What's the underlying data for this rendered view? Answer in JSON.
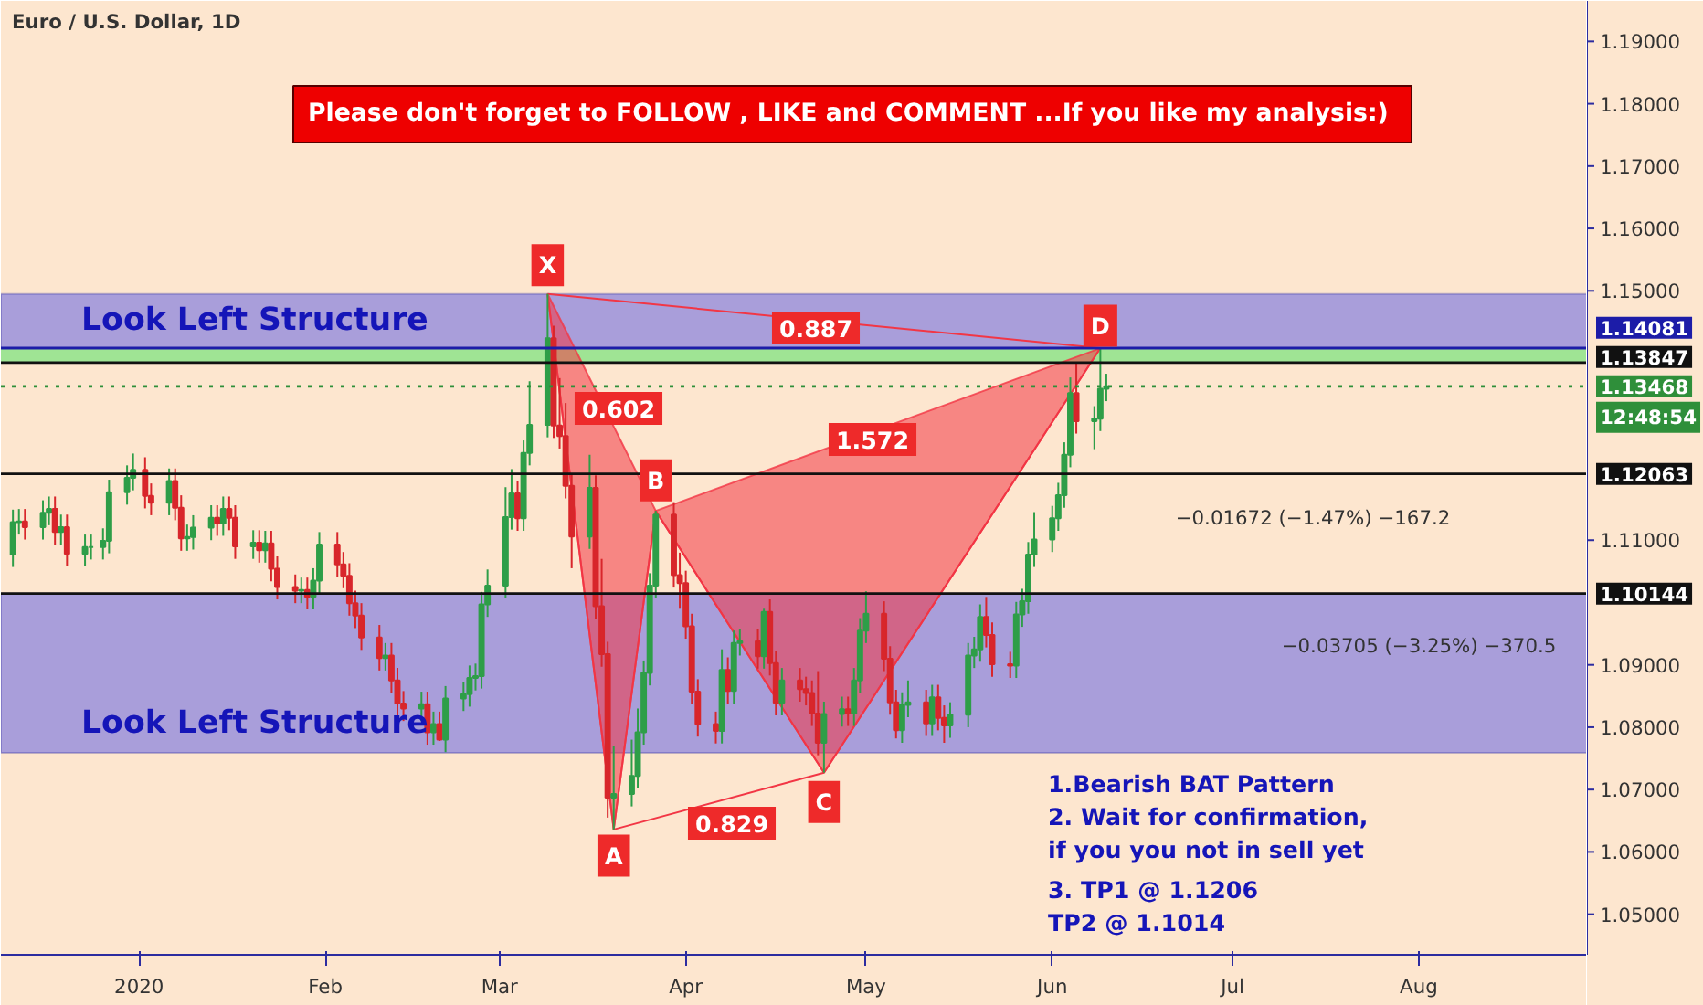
{
  "chart_data": {
    "type": "candlestick",
    "title": "Euro / U.S. Dollar, 1D",
    "x": [
      "2019-12-11",
      "2019-12-12",
      "2019-12-13",
      "2019-12-16",
      "2019-12-17",
      "2019-12-18",
      "2019-12-19",
      "2019-12-20",
      "2019-12-23",
      "2019-12-24",
      "2019-12-26",
      "2019-12-27",
      "2019-12-30",
      "2019-12-31",
      "2020-01-02",
      "2020-01-03",
      "2020-01-06",
      "2020-01-07",
      "2020-01-08",
      "2020-01-09",
      "2020-01-10",
      "2020-01-13",
      "2020-01-14",
      "2020-01-15",
      "2020-01-16",
      "2020-01-17",
      "2020-01-20",
      "2020-01-21",
      "2020-01-22",
      "2020-01-23",
      "2020-01-24",
      "2020-01-27",
      "2020-01-28",
      "2020-01-29",
      "2020-01-30",
      "2020-01-31",
      "2020-02-03",
      "2020-02-04",
      "2020-02-05",
      "2020-02-06",
      "2020-02-07",
      "2020-02-10",
      "2020-02-11",
      "2020-02-12",
      "2020-02-13",
      "2020-02-14",
      "2020-02-17",
      "2020-02-18",
      "2020-02-19",
      "2020-02-20",
      "2020-02-21",
      "2020-02-24",
      "2020-02-25",
      "2020-02-26",
      "2020-02-27",
      "2020-02-28",
      "2020-03-02",
      "2020-03-03",
      "2020-03-04",
      "2020-03-05",
      "2020-03-06",
      "2020-03-09",
      "2020-03-10",
      "2020-03-11",
      "2020-03-12",
      "2020-03-13",
      "2020-03-16",
      "2020-03-17",
      "2020-03-18",
      "2020-03-19",
      "2020-03-20",
      "2020-03-23",
      "2020-03-24",
      "2020-03-25",
      "2020-03-26",
      "2020-03-27",
      "2020-03-30",
      "2020-03-31",
      "2020-04-01",
      "2020-04-02",
      "2020-04-03",
      "2020-04-06",
      "2020-04-07",
      "2020-04-08",
      "2020-04-09",
      "2020-04-10",
      "2020-04-13",
      "2020-04-14",
      "2020-04-15",
      "2020-04-16",
      "2020-04-17",
      "2020-04-20",
      "2020-04-21",
      "2020-04-22",
      "2020-04-23",
      "2020-04-24",
      "2020-04-27",
      "2020-04-28",
      "2020-04-29",
      "2020-04-30",
      "2020-05-01",
      "2020-05-04",
      "2020-05-05",
      "2020-05-06",
      "2020-05-07",
      "2020-05-08",
      "2020-05-11",
      "2020-05-12",
      "2020-05-13",
      "2020-05-14",
      "2020-05-15",
      "2020-05-18",
      "2020-05-19",
      "2020-05-20",
      "2020-05-21",
      "2020-05-22",
      "2020-05-25",
      "2020-05-26",
      "2020-05-27",
      "2020-05-28",
      "2020-05-29",
      "2020-06-01",
      "2020-06-02",
      "2020-06-03",
      "2020-06-04",
      "2020-06-05",
      "2020-06-08",
      "2020-06-09",
      "2020-06-10"
    ],
    "ohlc": [
      [
        1.1077,
        1.1149,
        1.1057,
        1.1129
      ],
      [
        1.1129,
        1.115,
        1.1109,
        1.113
      ],
      [
        1.113,
        1.115,
        1.1101,
        1.1121
      ],
      [
        1.1121,
        1.1164,
        1.1101,
        1.1144
      ],
      [
        1.1144,
        1.117,
        1.1124,
        1.115
      ],
      [
        1.115,
        1.117,
        1.1093,
        1.1113
      ],
      [
        1.1113,
        1.1141,
        1.1093,
        1.1121
      ],
      [
        1.1121,
        1.1141,
        1.1058,
        1.1078
      ],
      [
        1.1078,
        1.1109,
        1.1058,
        1.1089
      ],
      [
        1.1089,
        1.1109,
        1.1069,
        1.1089
      ],
      [
        1.1089,
        1.1119,
        1.1069,
        1.1099
      ],
      [
        1.1099,
        1.1197,
        1.1079,
        1.1177
      ],
      [
        1.1177,
        1.122,
        1.1157,
        1.12
      ],
      [
        1.12,
        1.1239,
        1.118,
        1.1213
      ],
      [
        1.1213,
        1.1233,
        1.1151,
        1.1171
      ],
      [
        1.1171,
        1.1191,
        1.114,
        1.116
      ],
      [
        1.116,
        1.1215,
        1.114,
        1.1195
      ],
      [
        1.1195,
        1.1215,
        1.1132,
        1.1152
      ],
      [
        1.1152,
        1.1172,
        1.1083,
        1.1103
      ],
      [
        1.1103,
        1.1125,
        1.1083,
        1.1105
      ],
      [
        1.1105,
        1.114,
        1.1085,
        1.112
      ],
      [
        1.112,
        1.1156,
        1.11,
        1.1136
      ],
      [
        1.1136,
        1.1156,
        1.1107,
        1.1127
      ],
      [
        1.1127,
        1.117,
        1.1107,
        1.115
      ],
      [
        1.115,
        1.117,
        1.1116,
        1.1136
      ],
      [
        1.1136,
        1.1156,
        1.107,
        1.109
      ],
      [
        1.109,
        1.1116,
        1.107,
        1.1096
      ],
      [
        1.1096,
        1.1116,
        1.1064,
        1.1084
      ],
      [
        1.1084,
        1.1115,
        1.1064,
        1.1095
      ],
      [
        1.1095,
        1.1115,
        1.1034,
        1.1054
      ],
      [
        1.1054,
        1.1074,
        1.1005,
        1.1025
      ],
      [
        1.1025,
        1.1045,
        1.0999,
        1.1019
      ],
      [
        1.1019,
        1.104,
        1.0999,
        1.102
      ],
      [
        1.102,
        1.104,
        1.0989,
        1.1009
      ],
      [
        1.1009,
        1.1055,
        1.0989,
        1.1035
      ],
      [
        1.1035,
        1.1113,
        1.1015,
        1.1093
      ],
      [
        1.1093,
        1.1113,
        1.1041,
        1.1061
      ],
      [
        1.1061,
        1.1081,
        1.1023,
        1.1043
      ],
      [
        1.1043,
        1.1063,
        1.0979,
        1.0999
      ],
      [
        1.0999,
        1.1019,
        1.0959,
        1.0979
      ],
      [
        1.0979,
        1.0999,
        1.0924,
        1.0944
      ],
      [
        1.0944,
        1.0964,
        1.0891,
        1.0911
      ],
      [
        1.0911,
        1.0935,
        1.0891,
        1.0915
      ],
      [
        1.0915,
        1.0935,
        1.0855,
        1.0875
      ],
      [
        1.0875,
        1.0895,
        1.0818,
        1.0838
      ],
      [
        1.0838,
        1.0858,
        1.081,
        1.083
      ],
      [
        1.083,
        1.0857,
        1.081,
        1.0837
      ],
      [
        1.0837,
        1.0857,
        1.0772,
        1.0792
      ],
      [
        1.0792,
        1.0825,
        1.0772,
        1.0805
      ],
      [
        1.0805,
        1.0825,
        1.0778,
        1.078
      ],
      [
        1.078,
        1.0866,
        1.076,
        1.0846
      ],
      [
        1.0846,
        1.0873,
        1.0826,
        1.0853
      ],
      [
        1.0853,
        1.0899,
        1.0833,
        1.0879
      ],
      [
        1.0879,
        1.0902,
        1.0859,
        1.0882
      ],
      [
        1.0882,
        1.1017,
        1.0862,
        1.0997
      ],
      [
        1.0997,
        1.1053,
        1.0977,
        1.1027
      ],
      [
        1.1027,
        1.1185,
        1.1007,
        1.1137
      ],
      [
        1.1137,
        1.1214,
        1.1117,
        1.1175
      ],
      [
        1.1175,
        1.1195,
        1.1115,
        1.1135
      ],
      [
        1.1135,
        1.126,
        1.1115,
        1.124
      ],
      [
        1.124,
        1.1355,
        1.122,
        1.1285
      ],
      [
        1.1285,
        1.1495,
        1.1265,
        1.1424
      ],
      [
        1.1424,
        1.1444,
        1.1264,
        1.1284
      ],
      [
        1.1284,
        1.136,
        1.1247,
        1.1267
      ],
      [
        1.1267,
        1.132,
        1.1167,
        1.1187
      ],
      [
        1.1187,
        1.1207,
        1.1055,
        1.1106
      ],
      [
        1.1106,
        1.1237,
        1.1086,
        1.1184
      ],
      [
        1.1184,
        1.1204,
        1.0974,
        1.0994
      ],
      [
        1.0994,
        1.107,
        1.0897,
        1.0917
      ],
      [
        1.0917,
        1.0937,
        1.0655,
        1.0687
      ],
      [
        1.0687,
        1.077,
        1.0636,
        1.0693
      ],
      [
        1.0693,
        1.078,
        1.0673,
        1.0722
      ],
      [
        1.0722,
        1.083,
        1.0702,
        1.0792
      ],
      [
        1.0792,
        1.0907,
        1.0772,
        1.0887
      ],
      [
        1.0887,
        1.1047,
        1.0867,
        1.1027
      ],
      [
        1.1027,
        1.1147,
        1.1007,
        1.1141
      ],
      [
        1.1141,
        1.1161,
        1.1024,
        1.1044
      ],
      [
        1.1044,
        1.108,
        1.099,
        1.1031
      ],
      [
        1.1031,
        1.1051,
        1.0942,
        1.0962
      ],
      [
        1.0962,
        1.0982,
        1.0837,
        1.0857
      ],
      [
        1.0857,
        1.0877,
        1.0785,
        1.0805
      ],
      [
        1.0805,
        1.0825,
        1.0774,
        1.0794
      ],
      [
        1.0794,
        1.0925,
        1.0774,
        1.0892
      ],
      [
        1.0892,
        1.0912,
        1.0838,
        1.0858
      ],
      [
        1.0858,
        1.0955,
        1.0838,
        1.0935
      ],
      [
        1.0935,
        1.0958,
        1.0915,
        1.0938
      ],
      [
        1.0938,
        1.0958,
        1.0894,
        1.0914
      ],
      [
        1.0914,
        1.099,
        1.0894,
        1.0985
      ],
      [
        1.0985,
        1.1005,
        1.0883,
        1.0903
      ],
      [
        1.0903,
        1.0923,
        1.0819,
        1.0839
      ],
      [
        1.0839,
        1.0895,
        1.0819,
        1.0875
      ],
      [
        1.0875,
        1.0895,
        1.0841,
        1.0861
      ],
      [
        1.0861,
        1.0881,
        1.0835,
        1.0855
      ],
      [
        1.0855,
        1.0875,
        1.0802,
        1.0822
      ],
      [
        1.0822,
        1.089,
        1.0755,
        1.0775
      ],
      [
        1.0775,
        1.0841,
        1.0727,
        1.0821
      ],
      [
        1.0821,
        1.0849,
        1.0801,
        1.0829
      ],
      [
        1.0829,
        1.0849,
        1.0802,
        1.0822
      ],
      [
        1.0822,
        1.0895,
        1.0802,
        1.0875
      ],
      [
        1.0875,
        1.0975,
        1.0855,
        1.0955
      ],
      [
        1.0955,
        1.1018,
        1.0935,
        1.0982
      ],
      [
        1.0982,
        1.1002,
        1.089,
        1.091
      ],
      [
        1.091,
        1.093,
        1.082,
        1.084
      ],
      [
        1.084,
        1.086,
        1.0782,
        1.0795
      ],
      [
        1.0795,
        1.0856,
        1.0775,
        1.0836
      ],
      [
        1.0836,
        1.0875,
        1.0816,
        1.084
      ],
      [
        1.084,
        1.086,
        1.0786,
        1.0806
      ],
      [
        1.0806,
        1.0868,
        1.0786,
        1.0848
      ],
      [
        1.0848,
        1.0868,
        1.0795,
        1.0815
      ],
      [
        1.0815,
        1.0835,
        1.0775,
        1.0803
      ],
      [
        1.0803,
        1.084,
        1.0783,
        1.082
      ],
      [
        1.082,
        1.0935,
        1.08,
        1.0915
      ],
      [
        1.0915,
        1.0945,
        1.0895,
        1.0925
      ],
      [
        1.0925,
        1.0997,
        1.0905,
        1.0977
      ],
      [
        1.0977,
        1.1009,
        1.0928,
        1.0948
      ],
      [
        1.0948,
        1.0968,
        1.0881,
        1.0901
      ],
      [
        1.0901,
        1.0921,
        1.0879,
        1.0899
      ],
      [
        1.0899,
        1.1001,
        1.0879,
        1.0981
      ],
      [
        1.0981,
        1.1022,
        1.0961,
        1.1002
      ],
      [
        1.1002,
        1.1097,
        1.0982,
        1.1077
      ],
      [
        1.1077,
        1.1145,
        1.1057,
        1.1101
      ],
      [
        1.1101,
        1.1155,
        1.1081,
        1.1135
      ],
      [
        1.1135,
        1.1192,
        1.1115,
        1.1172
      ],
      [
        1.1172,
        1.1257,
        1.1152,
        1.1237
      ],
      [
        1.1237,
        1.1361,
        1.1217,
        1.1336
      ],
      [
        1.1336,
        1.1384,
        1.1271,
        1.1291
      ],
      [
        1.1291,
        1.1315,
        1.1246,
        1.1295
      ],
      [
        1.1295,
        1.1408,
        1.1275,
        1.1343
      ],
      [
        1.1343,
        1.1367,
        1.1323,
        1.1347
      ]
    ],
    "series": [
      {
        "type": "line",
        "color": "#f23645",
        "x": [
          "2020-03-09",
          "2020-03-20",
          "2020-03-27",
          "2020-04-24",
          "2020-06-09"
        ],
        "values": [
          1.1495,
          1.0636,
          1.1147,
          1.0727,
          1.1408
        ]
      },
      {
        "type": "area",
        "color": "#f23645",
        "x": [
          "2020-03-09",
          "2020-03-20",
          "2020-03-27"
        ],
        "values": [
          1.1495,
          1.0636,
          1.1147
        ]
      },
      {
        "type": "area",
        "color": "#f23645",
        "x": [
          "2020-03-27",
          "2020-04-24",
          "2020-06-09"
        ],
        "values": [
          1.1147,
          1.0727,
          1.1408
        ]
      }
    ],
    "xlim": [
      "2019-12-09",
      "2020-08-29"
    ],
    "xticks": [
      {
        "value": "2020-01-01",
        "label": "2020"
      },
      {
        "value": "2020-02-01",
        "label": "Feb"
      },
      {
        "value": "2020-03-01",
        "label": "Mar"
      },
      {
        "value": "2020-04-01",
        "label": "Apr"
      },
      {
        "value": "2020-05-01",
        "label": "May"
      },
      {
        "value": "2020-06-01",
        "label": "Jun"
      },
      {
        "value": "2020-07-01",
        "label": "Jul"
      },
      {
        "value": "2020-08-01",
        "label": "Aug"
      }
    ],
    "ylim": [
      1.0435,
      1.1965
    ],
    "yticks": [
      {
        "value": 1.05,
        "label": "1.05000"
      },
      {
        "value": 1.06,
        "label": "1.06000"
      },
      {
        "value": 1.07,
        "label": "1.07000"
      },
      {
        "value": 1.08,
        "label": "1.08000"
      },
      {
        "value": 1.09,
        "label": "1.09000"
      },
      {
        "value": 1.11,
        "label": "1.11000"
      },
      {
        "value": 1.15,
        "label": "1.15000"
      },
      {
        "value": 1.16,
        "label": "1.16000"
      },
      {
        "value": 1.17,
        "label": "1.17000"
      },
      {
        "value": 1.18,
        "label": "1.18000"
      },
      {
        "value": 1.19,
        "label": "1.19000"
      }
    ],
    "bands": [
      {
        "axis": "y",
        "from": 1.14081,
        "to": 1.1495,
        "label": "Look Left Structure",
        "color": "#9a90dc"
      },
      {
        "axis": "y",
        "from": 1.0759,
        "to": 1.10144,
        "label": "Look Left Structure",
        "color": "#9a90dc"
      },
      {
        "axis": "y",
        "from": 1.13847,
        "to": 1.14081,
        "color": "#8ee38a"
      }
    ],
    "ref_lines": [
      {
        "axis": "y",
        "value": 1.14081,
        "label": "1.14081",
        "color": "#1c1ca8"
      },
      {
        "axis": "y",
        "value": 1.13847,
        "label": "1.13847",
        "color": "#111111"
      },
      {
        "axis": "y",
        "value": 1.13468,
        "label": "1.13468",
        "color": "#2f8f3a",
        "line_style": "dotted"
      },
      {
        "axis": "y",
        "value": 1.12063,
        "label": "1.12063",
        "color": "#111111"
      },
      {
        "axis": "y",
        "value": 1.10144,
        "label": "1.10144",
        "color": "#111111"
      }
    ],
    "annotations": [
      "Please don't forget  to FOLLOW , LIKE and COMMENT ...If you like my analysis:)",
      "12:48:54",
      "1.Bearish BAT Pattern",
      "2. Wait for confirmation,\n    if you you not in sell yet",
      "3. TP1 @ 1.1206\n    TP2 @ 1.1014",
      {
        "text": "X",
        "x": "2020-03-09",
        "y": 1.1541
      },
      {
        "text": "A",
        "x": "2020-03-20",
        "y": 1.0594
      },
      {
        "text": "B",
        "x": "2020-03-27",
        "y": 1.1196
      },
      {
        "text": "C",
        "x": "2020-04-24",
        "y": 1.068
      },
      {
        "text": "D",
        "x": "2020-06-09",
        "y": 1.1444
      },
      "0.887",
      "0.602",
      "1.572",
      "0.829",
      "−0.01672 (−1.47%) −167.2",
      "−0.03705 (−3.25%) −370.5"
    ]
  }
}
